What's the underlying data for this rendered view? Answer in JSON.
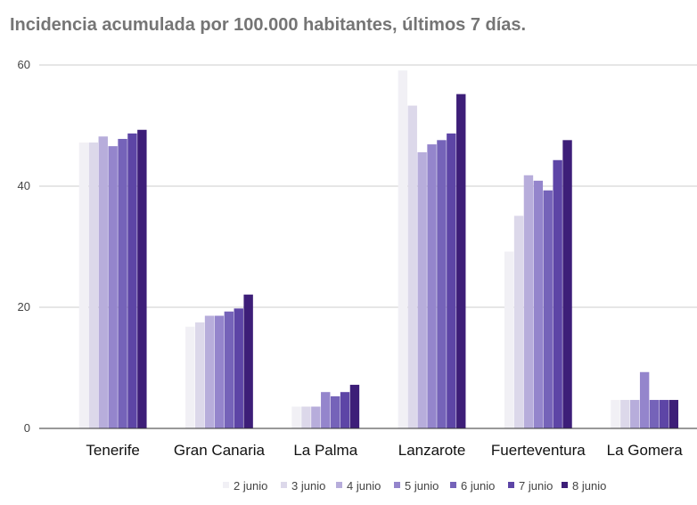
{
  "chart_data": {
    "type": "bar",
    "title": "Incidencia acumulada por 100.000 habitantes, últimos 7 días.",
    "xlabel": "",
    "ylabel": "",
    "ylim": [
      0,
      60
    ],
    "yticks": [
      0,
      20,
      40,
      60
    ],
    "grid": true,
    "legend_position": "bottom",
    "categories": [
      "Tenerife",
      "Gran Canaria",
      "La Palma",
      "Lanzarote",
      "Fuerteventura",
      "La Gomera"
    ],
    "series": [
      {
        "name": "2 junio",
        "color": "#f1f0f5",
        "values": [
          47.2,
          16.8,
          3.6,
          59.1,
          29.2,
          4.7
        ]
      },
      {
        "name": "3 junio",
        "color": "#dcd8ea",
        "values": [
          47.2,
          17.5,
          3.6,
          53.3,
          35.1,
          4.7
        ]
      },
      {
        "name": "4 junio",
        "color": "#b7addb",
        "values": [
          48.2,
          18.6,
          3.6,
          45.6,
          41.8,
          4.7
        ]
      },
      {
        "name": "5 junio",
        "color": "#9485cc",
        "values": [
          46.6,
          18.6,
          6.0,
          46.9,
          40.9,
          9.3
        ]
      },
      {
        "name": "6 junio",
        "color": "#7563b9",
        "values": [
          47.8,
          19.3,
          5.3,
          47.6,
          39.3,
          4.7
        ]
      },
      {
        "name": "7 junio",
        "color": "#5d45a6",
        "values": [
          48.7,
          19.8,
          6.0,
          48.7,
          44.3,
          4.7
        ]
      },
      {
        "name": "8 junio",
        "color": "#3d1e78",
        "values": [
          49.3,
          22.1,
          7.2,
          55.2,
          47.6,
          4.7
        ]
      }
    ]
  }
}
